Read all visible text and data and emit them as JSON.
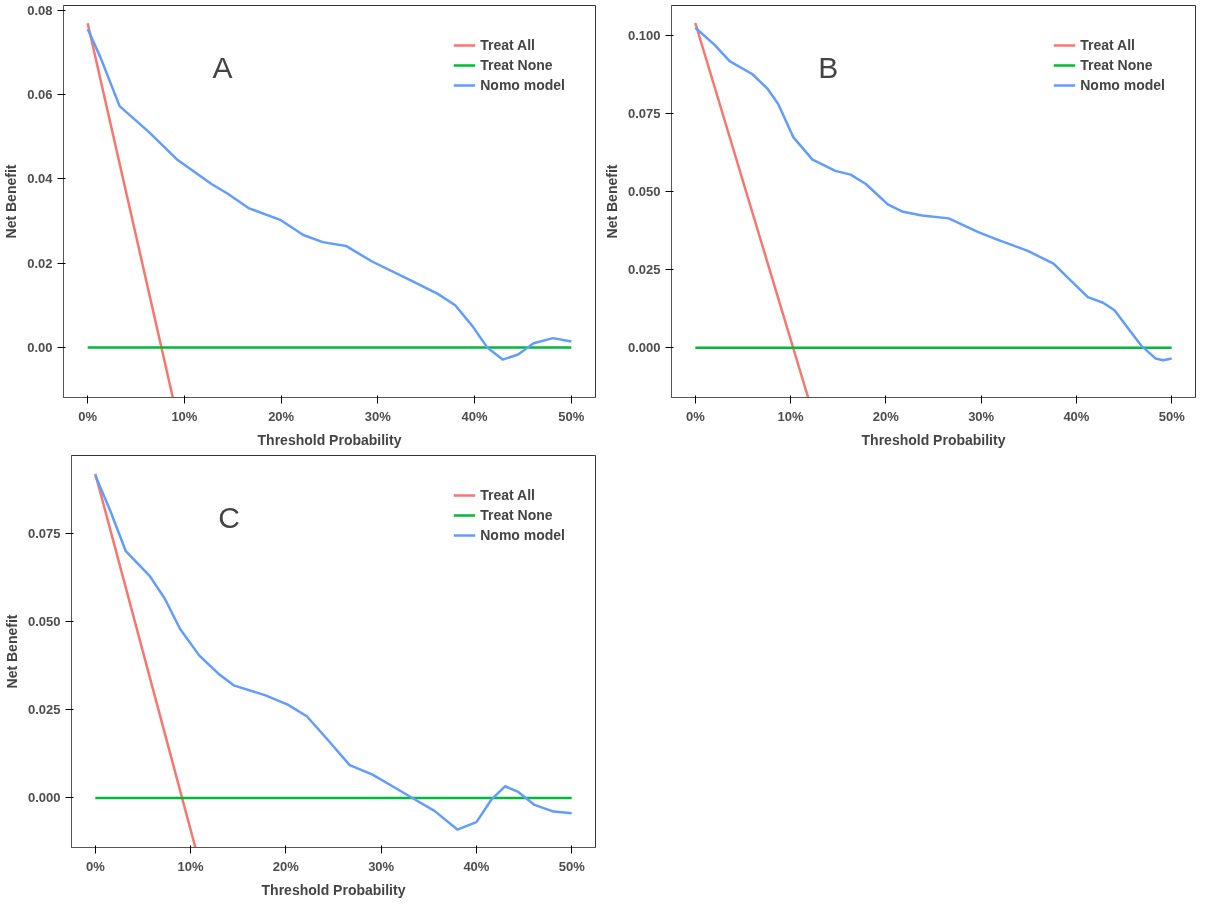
{
  "chart_data": [
    {
      "type": "line",
      "annotations": [
        "A"
      ],
      "xlabel": "Threshold Probability",
      "ylabel": "Net Benefit",
      "legend": "top right",
      "grid": false,
      "xlim": [
        -2.5,
        52.5
      ],
      "ylim": [
        -0.0119,
        0.0812
      ],
      "xticks": [
        {
          "value": 0,
          "label": "0%"
        },
        {
          "value": 10,
          "label": "10%"
        },
        {
          "value": 20,
          "label": "20%"
        },
        {
          "value": 30,
          "label": "30%"
        },
        {
          "value": 40,
          "label": "40%"
        },
        {
          "value": 50,
          "label": "50%"
        }
      ],
      "yticks": [
        {
          "value": 0,
          "label": "0.00"
        },
        0.02,
        0.04,
        0.06,
        0.08
      ],
      "series": [
        {
          "name": "Treat All",
          "color": "#f8766d",
          "x": [
            0,
            8.8
          ],
          "values": [
            0.077,
            -0.0119
          ]
        },
        {
          "name": "Treat None",
          "color": "#00ba38",
          "x": [
            0,
            50
          ],
          "values": [
            0,
            0
          ]
        },
        {
          "name": "Nomo model",
          "color": "#619cff",
          "x": [
            0,
            1.3,
            3.3,
            6.4,
            9.2,
            12.8,
            14.4,
            16.7,
            19.9,
            22.3,
            24.3,
            26.7,
            29.4,
            33.4,
            36.2,
            38.0,
            39.8,
            41.3,
            42.9,
            44.5,
            46.1,
            48.1,
            50
          ],
          "values": [
            0.0756,
            0.069,
            0.0573,
            0.051,
            0.0447,
            0.0388,
            0.0366,
            0.033,
            0.0303,
            0.0267,
            0.025,
            0.0241,
            0.0204,
            0.0159,
            0.0127,
            0.01,
            0.005,
            0.0,
            -0.0029,
            -0.0017,
            0.001,
            0.0022,
            0.0014
          ]
        }
      ]
    },
    {
      "type": "line",
      "annotations": [
        "B"
      ],
      "xlabel": "Threshold Probability",
      "ylabel": "Net Benefit",
      "legend": "top right",
      "grid": false,
      "xlim": [
        -2.5,
        52.5
      ],
      "ylim": [
        -0.0159,
        0.1095
      ],
      "xticks": [
        {
          "value": 0,
          "label": "0%"
        },
        {
          "value": 10,
          "label": "10%"
        },
        {
          "value": 20,
          "label": "20%"
        },
        {
          "value": 30,
          "label": "30%"
        },
        {
          "value": 40,
          "label": "40%"
        },
        {
          "value": 50,
          "label": "50%"
        }
      ],
      "yticks": [
        {
          "value": 0,
          "label": "0.000"
        },
        0.025,
        {
          "value": 0.05,
          "label": "0.050"
        },
        0.075,
        {
          "value": 0.1,
          "label": "0.100"
        }
      ],
      "series": [
        {
          "name": "Treat All",
          "color": "#f8766d",
          "x": [
            0,
            11.84
          ],
          "values": [
            0.1039,
            -0.0159
          ]
        },
        {
          "name": "Treat None",
          "color": "#00ba38",
          "x": [
            0,
            50
          ],
          "values": [
            0,
            0
          ]
        },
        {
          "name": "Nomo model",
          "color": "#619cff",
          "x": [
            0,
            2.0,
            3.6,
            6.0,
            7.6,
            8.7,
            10.3,
            12.3,
            14.7,
            16.3,
            17.9,
            20.2,
            21.8,
            23.8,
            26.6,
            29.7,
            31.7,
            34.9,
            37.6,
            38.8,
            41.2,
            42.8,
            44.0,
            45.6,
            46.8,
            48.3,
            49.1,
            50
          ],
          "values": [
            0.1024,
            0.097,
            0.0917,
            0.0875,
            0.0828,
            0.078,
            0.0673,
            0.0602,
            0.0566,
            0.0554,
            0.0524,
            0.0459,
            0.0435,
            0.0423,
            0.0414,
            0.037,
            0.0346,
            0.031,
            0.0269,
            0.0233,
            0.0162,
            0.0144,
            0.012,
            0.0055,
            0.0007,
            -0.0034,
            -0.004,
            -0.0034
          ]
        }
      ]
    },
    {
      "type": "line",
      "annotations": [
        "C"
      ],
      "xlabel": "Threshold Probability",
      "ylabel": "Net Benefit",
      "legend": "top right",
      "grid": false,
      "xlim": [
        -2.5,
        52.5
      ],
      "ylim": [
        -0.0141,
        0.0973
      ],
      "xticks": [
        {
          "value": 0,
          "label": "0%"
        },
        {
          "value": 10,
          "label": "10%"
        },
        {
          "value": 20,
          "label": "20%"
        },
        {
          "value": 30,
          "label": "30%"
        },
        {
          "value": 40,
          "label": "40%"
        },
        {
          "value": 50,
          "label": "50%"
        }
      ],
      "yticks": [
        {
          "value": 0,
          "label": "0.000"
        },
        0.025,
        {
          "value": 0.05,
          "label": "0.050"
        },
        0.075
      ],
      "series": [
        {
          "name": "Treat All",
          "color": "#f8766d",
          "x": [
            0,
            10.5
          ],
          "values": [
            0.0921,
            -0.0141
          ]
        },
        {
          "name": "Treat None",
          "color": "#00ba38",
          "x": [
            0,
            50
          ],
          "values": [
            0,
            0
          ]
        },
        {
          "name": "Nomo model",
          "color": "#619cff",
          "x": [
            0,
            1.6,
            3.2,
            5.7,
            7.3,
            8.9,
            10.9,
            13.0,
            14.6,
            17.8,
            20.2,
            22.2,
            24.3,
            26.7,
            29.1,
            31.5,
            33.5,
            35.6,
            38.0,
            40.0,
            41.6,
            43.0,
            44.4,
            46.1,
            48.1,
            50
          ],
          "values": [
            0.0916,
            0.0814,
            0.0701,
            0.0631,
            0.0566,
            0.048,
            0.0405,
            0.0351,
            0.0319,
            0.0292,
            0.0265,
            0.0232,
            0.0168,
            0.0093,
            0.0066,
            0.0028,
            -0.0004,
            -0.0037,
            -0.009,
            -0.0069,
            -0.0004,
            0.0033,
            0.0017,
            -0.002,
            -0.0039,
            -0.0044
          ]
        }
      ]
    }
  ]
}
